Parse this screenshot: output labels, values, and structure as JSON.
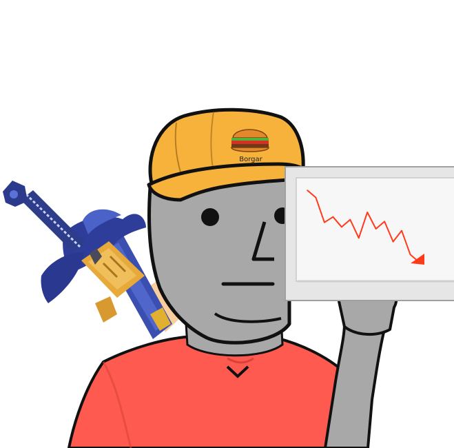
{
  "cap": {
    "label": "Borgar"
  },
  "colors": {
    "skin": "#a8a8a8",
    "cap": "#f6b23a",
    "shirt": "#ff5a50",
    "board": "#f2f2f2",
    "trend_line": "#ff3a1a",
    "sword_blade": "#3b4fb0",
    "sword_hilt": "#e7a93a"
  },
  "icons": [
    "burger-icon",
    "sword-icon",
    "down-trend-arrow-icon"
  ],
  "chart_data": {
    "type": "line",
    "title": "",
    "xlabel": "",
    "ylabel": "",
    "grid": false,
    "trend": "downward",
    "series": [
      {
        "values": [
          10,
          9.2,
          6.5,
          7.1,
          6.0,
          6.8,
          4.8,
          7.6,
          5.8,
          6.6,
          4.4,
          5.6,
          3.0,
          2.2
        ]
      }
    ]
  }
}
